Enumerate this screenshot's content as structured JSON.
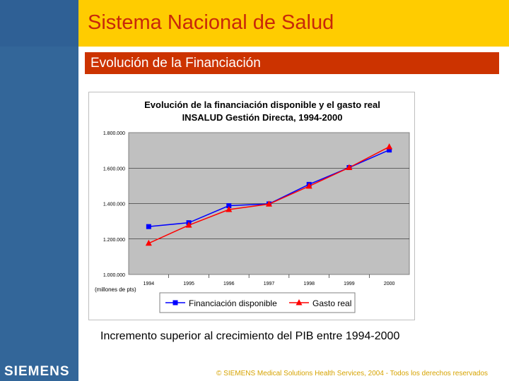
{
  "header": {
    "title": "Sistema Nacional de Salud"
  },
  "section": {
    "title": "Evolución de la Financiación"
  },
  "brand": {
    "logo_text": "SIEMENS"
  },
  "caption": "Incremento superior al crecimiento del PIB entre 1994-2000",
  "footer": "© SIEMENS Medical Solutions Health Services, 2004 - Todos los derechos reservados",
  "colors": {
    "title_bar": "#ffcc00",
    "title_text": "#c8280a",
    "section_bar": "#cc3300",
    "left_bar": "#336699",
    "plot_bg": "#c0c0c0",
    "series1": "#0000ff",
    "series2": "#ff0000"
  },
  "chart_data": {
    "type": "line",
    "title_line1": "Evolución de la financiación disponible y el gasto real",
    "title_line2": "INSALUD Gestión Directa, 1994-2000",
    "unit_label": "(millones de pts)",
    "x": [
      "1994",
      "1995",
      "1996",
      "1997",
      "1998",
      "1999",
      "2000"
    ],
    "ylim": [
      1000000,
      1800000
    ],
    "yticks": [
      1000000,
      1200000,
      1400000,
      1600000,
      1800000
    ],
    "ytick_labels": [
      "1.000.000",
      "1.200.000",
      "1.400.000",
      "1.600.000",
      "1.800.000"
    ],
    "grid": true,
    "legend_position": "bottom",
    "series": [
      {
        "name": "Financiación disponible",
        "marker": "square",
        "color": "#0000ff",
        "values": [
          1270000,
          1292000,
          1388000,
          1398000,
          1508000,
          1603000,
          1702000
        ]
      },
      {
        "name": "Gasto real",
        "marker": "triangle",
        "color": "#ff0000",
        "values": [
          1176000,
          1278000,
          1366000,
          1397000,
          1498000,
          1603000,
          1720000
        ]
      }
    ]
  }
}
